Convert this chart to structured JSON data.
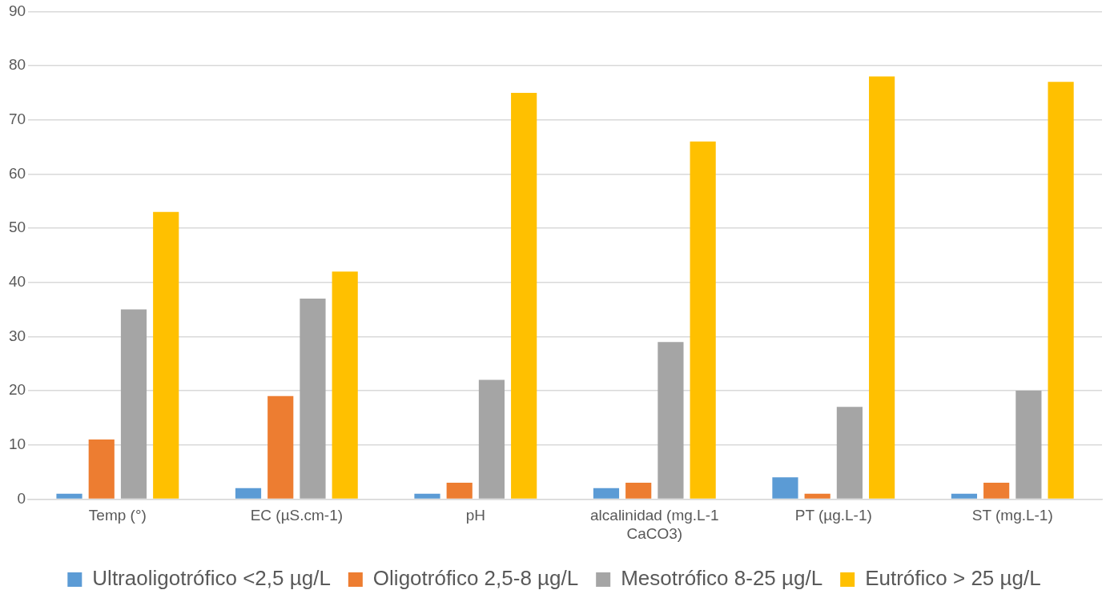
{
  "chart_data": {
    "type": "bar",
    "categories": [
      "Temp (°)",
      "EC (µS.cm-1)",
      "pH",
      "alcalinidad (mg.L-1 CaCO3)",
      "PT (µg.L-1)",
      "ST (mg.L-1)"
    ],
    "series": [
      {
        "name": "Ultraoligotrófico <2,5 µg/L",
        "color": "#5b9bd5",
        "values": [
          1,
          2,
          1,
          2,
          4,
          1
        ]
      },
      {
        "name": "Oligotrófico 2,5-8 µg/L",
        "color": "#ed7d31",
        "values": [
          11,
          19,
          3,
          3,
          1,
          3
        ]
      },
      {
        "name": "Mesotrófico 8-25 µg/L",
        "color": "#a5a5a5",
        "values": [
          35,
          37,
          22,
          29,
          17,
          20
        ]
      },
      {
        "name": "Eutrófico > 25 µg/L",
        "color": "#ffc000",
        "values": [
          53,
          42,
          75,
          66,
          78,
          77
        ]
      }
    ],
    "ylim": [
      0,
      90
    ],
    "yticks": [
      0,
      10,
      20,
      30,
      40,
      50,
      60,
      70,
      80,
      90
    ],
    "grid": "y",
    "legend": "bottom"
  }
}
